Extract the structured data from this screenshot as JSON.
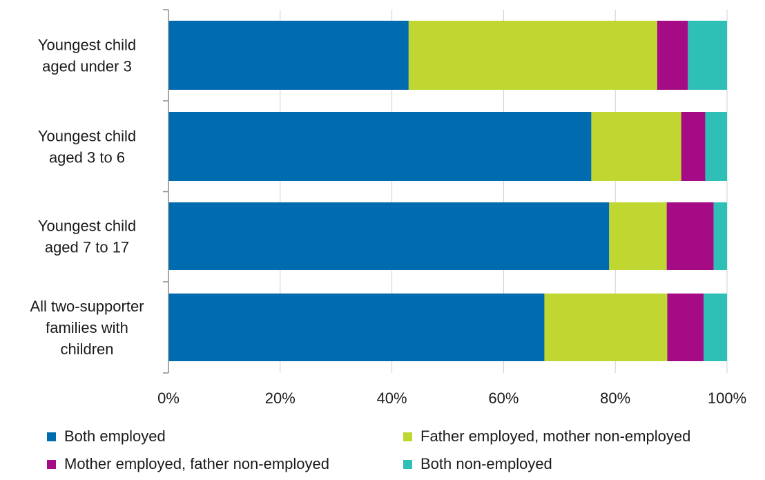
{
  "chart_data": {
    "type": "bar",
    "orientation": "horizontal",
    "stacked": true,
    "categories": [
      [
        "Youngest child",
        "aged under 3"
      ],
      [
        "Youngest child",
        "aged 3 to 6"
      ],
      [
        "Youngest child",
        "aged 7 to 17"
      ],
      [
        "All two-supporter",
        "families with",
        "children"
      ]
    ],
    "series": [
      {
        "name": "Both employed",
        "color": "#006bae",
        "values": [
          43,
          75.7,
          78.9,
          67.3
        ]
      },
      {
        "name": "Father employed, mother non-employed",
        "color": "#bfd730",
        "values": [
          44.5,
          16.1,
          10.3,
          22.0
        ]
      },
      {
        "name": "Mother employed, father non-employed",
        "color": "#a50b84",
        "values": [
          5.5,
          4.3,
          8.4,
          6.5
        ]
      },
      {
        "name": "Both non-employed",
        "color": "#2ebfb6",
        "values": [
          7.0,
          3.9,
          2.4,
          4.2
        ]
      }
    ],
    "xlim": [
      0,
      100
    ],
    "xticks": [
      "0%",
      "20%",
      "40%",
      "60%",
      "80%",
      "100%"
    ],
    "grid": true,
    "legend_position": "bottom"
  }
}
